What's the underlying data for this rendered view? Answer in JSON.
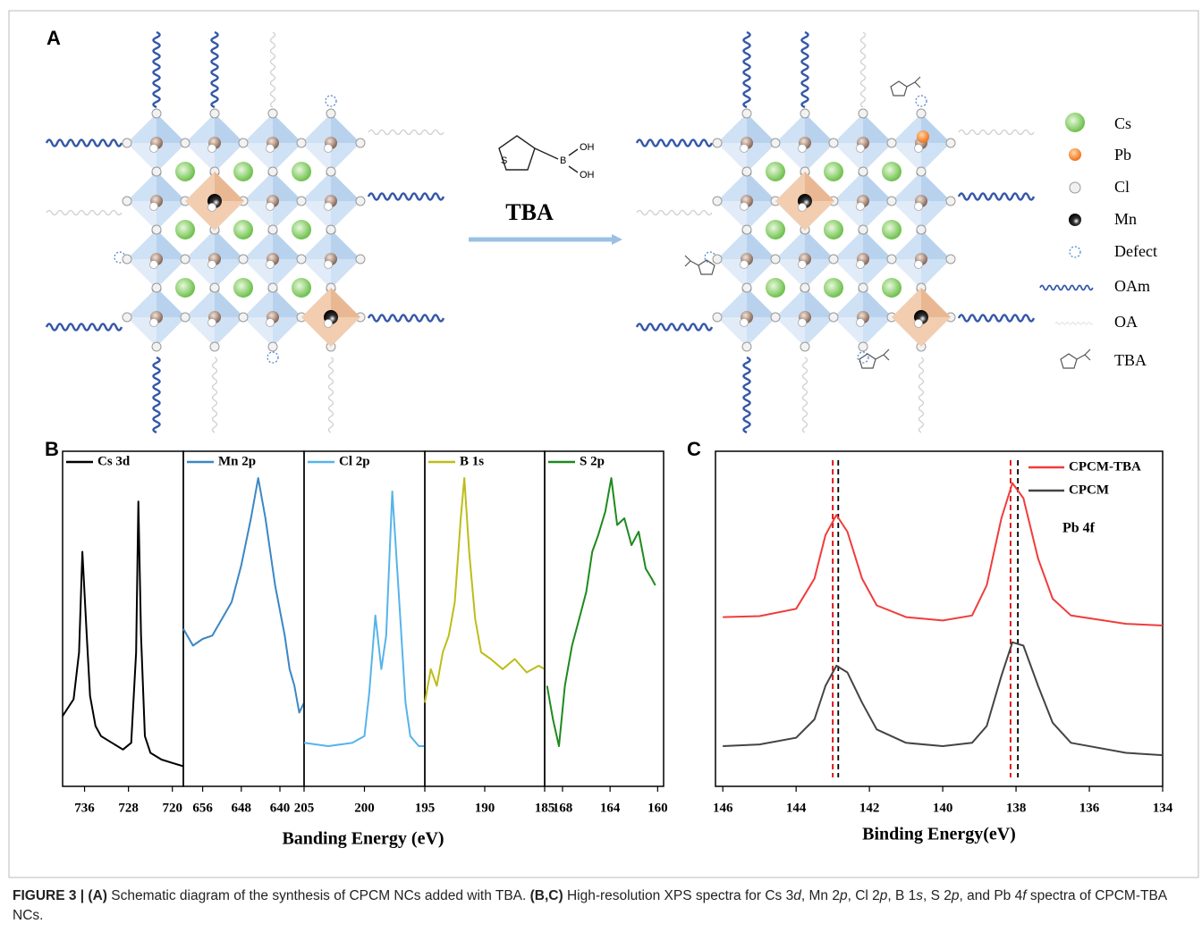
{
  "panel_a": {
    "label": "A",
    "reagent": "TBA",
    "molecule": {
      "s": "S",
      "b": "B",
      "oh_top": "OH",
      "oh_bottom": "OH"
    },
    "legend": [
      "Cs",
      "Pb",
      "Cl",
      "Mn",
      "Defect",
      "OAm",
      "OA",
      "TBA"
    ]
  },
  "panel_b": {
    "label": "B",
    "xlabel": "Banding Energy (eV)"
  },
  "panel_c": {
    "label": "C",
    "xlabel": "Binding Energy(eV)",
    "annotation": "Pb 4f"
  },
  "chart_data": [
    {
      "type": "line",
      "x": [
        740,
        738,
        737,
        736.4,
        735.6,
        735,
        734,
        733,
        731,
        729,
        727.5,
        726.6,
        726.2,
        725.7,
        725,
        724,
        722,
        720,
        718
      ],
      "series": [
        {
          "name": "Cs 3d",
          "color": "#000000",
          "values": [
            21,
            26,
            40,
            70,
            45,
            27,
            18,
            15,
            13,
            11,
            13,
            40,
            85,
            45,
            15,
            10,
            8,
            7,
            6
          ]
        }
      ],
      "xlim": [
        740,
        718
      ],
      "xticks": [
        736,
        728,
        720
      ],
      "ylim": [
        0,
        100
      ]
    },
    {
      "type": "line",
      "x": [
        660,
        658,
        656,
        654,
        652,
        650,
        648,
        646,
        644.5,
        643,
        641,
        639,
        638,
        637,
        636,
        635
      ],
      "series": [
        {
          "name": "Mn 2p",
          "color": "#3b87c4",
          "values": [
            47,
            42,
            44,
            45,
            50,
            55,
            66,
            80,
            92,
            80,
            60,
            45,
            35,
            30,
            22,
            25
          ]
        }
      ],
      "xlim": [
        660,
        635
      ],
      "xticks": [
        656,
        648,
        640
      ],
      "ylim": [
        0,
        100
      ]
    },
    {
      "type": "line",
      "x": [
        205,
        203,
        201,
        200,
        199.6,
        199.1,
        198.6,
        198.2,
        197.7,
        197.2,
        196.6,
        196.2,
        195.5,
        195
      ],
      "series": [
        {
          "name": "Cl 2p",
          "color": "#56b4e9",
          "values": [
            13,
            12,
            13,
            15,
            28,
            51,
            35,
            45,
            88,
            60,
            25,
            15,
            12,
            12
          ]
        }
      ],
      "xlim": [
        205,
        195
      ],
      "xticks": [
        205,
        200
      ],
      "ylim": [
        0,
        100
      ]
    },
    {
      "type": "line",
      "x": [
        195,
        194.5,
        194,
        193.5,
        193,
        192.5,
        192,
        191.7,
        191.3,
        190.8,
        190.3,
        189.5,
        188.5,
        187.5,
        186.5,
        185.5,
        185
      ],
      "series": [
        {
          "name": "B 1s",
          "color": "#bdbd1a",
          "values": [
            25,
            35,
            30,
            40,
            45,
            55,
            80,
            92,
            70,
            50,
            40,
            38,
            35,
            38,
            34,
            36,
            35
          ]
        }
      ],
      "xlim": [
        195,
        185
      ],
      "xticks": [
        195,
        190,
        185
      ],
      "ylim": [
        0,
        100
      ]
    },
    {
      "type": "line",
      "x": [
        169.3,
        168.8,
        168.3,
        167.8,
        167.2,
        166.6,
        166,
        165.5,
        165,
        164.4,
        163.9,
        163.4,
        162.8,
        162.2,
        161.6,
        161,
        160.5,
        160.2
      ],
      "series": [
        {
          "name": "S 2p",
          "color": "#1e8a1e",
          "values": [
            30,
            20,
            12,
            30,
            42,
            50,
            58,
            70,
            75,
            82,
            92,
            78,
            80,
            72,
            76,
            65,
            62,
            60
          ]
        }
      ],
      "xlim": [
        169.5,
        159.5
      ],
      "xticks": [
        168,
        164,
        160
      ],
      "ylim": [
        0,
        100
      ]
    },
    {
      "type": "line",
      "x": [
        146,
        145,
        144,
        143.5,
        143.2,
        142.9,
        142.6,
        142.2,
        141.8,
        141,
        140,
        139.2,
        138.8,
        138.4,
        138.1,
        137.8,
        137.4,
        137,
        136.5,
        135,
        134
      ],
      "series": [
        {
          "name": "CPCM-TBA",
          "color": "#f03c3c",
          "values": [
            50.5,
            50.8,
            53,
            62,
            75,
            81,
            76,
            62,
            54,
            50.5,
            49.5,
            51,
            60,
            80,
            90.5,
            86,
            68,
            56,
            51,
            48.5,
            48
          ]
        },
        {
          "name": "CPCM",
          "color": "#444444",
          "values": [
            12,
            12.5,
            14.5,
            20,
            30,
            36,
            34,
            25,
            17,
            13,
            12,
            13,
            18,
            33,
            43,
            42,
            30,
            19,
            13,
            10,
            9.3
          ]
        }
      ],
      "ref_lines": [
        {
          "x": 143.0,
          "color": "#e00000"
        },
        {
          "x": 138.15,
          "color": "#e00000"
        },
        {
          "x": 142.85,
          "color": "#000000"
        },
        {
          "x": 137.95,
          "color": "#000000"
        }
      ],
      "xlim": [
        146.2,
        134
      ],
      "xticks": [
        146,
        144,
        142,
        140,
        138,
        136,
        134
      ],
      "ylim": [
        0,
        100
      ]
    }
  ],
  "caption": [
    {
      "text": "FIGURE 3 | (A)",
      "style": "b"
    },
    {
      "text": " Schematic diagram of the synthesis of CPCM NCs added with TBA. ",
      "style": "n"
    },
    {
      "text": "(B,C)",
      "style": "b"
    },
    {
      "text": " High-resolution XPS spectra for Cs 3",
      "style": "n"
    },
    {
      "text": "d",
      "style": "i"
    },
    {
      "text": ", Mn 2",
      "style": "n"
    },
    {
      "text": "p",
      "style": "i"
    },
    {
      "text": ", Cl 2",
      "style": "n"
    },
    {
      "text": "p",
      "style": "i"
    },
    {
      "text": ", B 1",
      "style": "n"
    },
    {
      "text": "s",
      "style": "i"
    },
    {
      "text": ", S 2",
      "style": "n"
    },
    {
      "text": "p",
      "style": "i"
    },
    {
      "text": ", and Pb 4",
      "style": "n"
    },
    {
      "text": "f",
      "style": "i"
    },
    {
      "text": " spectra of CPCM-TBA NCs.",
      "style": "n"
    }
  ]
}
